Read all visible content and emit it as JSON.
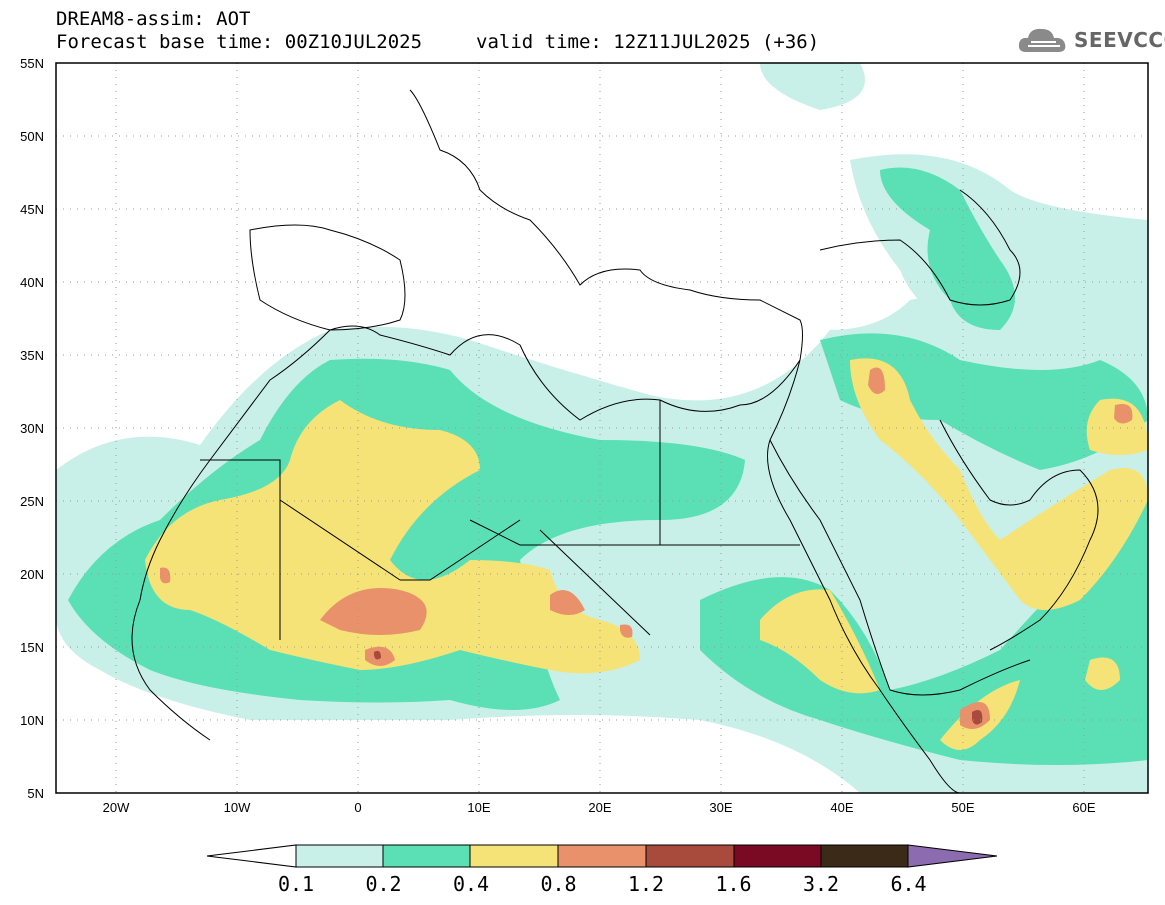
{
  "title": {
    "line1": "DREAM8-assim: AOT",
    "line2": "Forecast base time: 00Z10JUL2025",
    "valid": "valid time: 12Z11JUL2025 (+36)"
  },
  "logo": {
    "text": "SEEVCCC",
    "icon": "cloud-icon"
  },
  "map": {
    "lat_labels": [
      "55N",
      "50N",
      "45N",
      "40N",
      "35N",
      "30N",
      "25N",
      "20N",
      "15N",
      "10N",
      "5N"
    ],
    "lon_labels": [
      "20W",
      "10W",
      "0",
      "10E",
      "20E",
      "30E",
      "40E",
      "50E",
      "60E"
    ]
  },
  "colorbar": {
    "labels": [
      "0.1",
      "0.2",
      "0.4",
      "0.8",
      "1.2",
      "1.6",
      "3.2",
      "6.4"
    ],
    "colors": [
      "#ffffff",
      "#c8f0e8",
      "#5ae0b4",
      "#f5e377",
      "#e8916a",
      "#a94b3c",
      "#7a0a23",
      "#3b2a17",
      "#8d6bb0"
    ]
  }
}
